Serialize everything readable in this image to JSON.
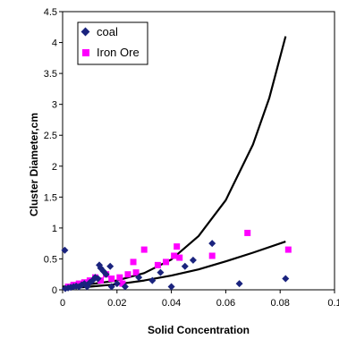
{
  "chart_data": {
    "type": "scatter",
    "title": "",
    "xlabel": "Solid Concentration",
    "ylabel": "Cluster Diameter,cm",
    "xlim": [
      0,
      0.1
    ],
    "ylim": [
      0,
      4.5
    ],
    "x_ticks": [
      {
        "value": 0,
        "label": "0"
      },
      {
        "value": 0.02,
        "label": "0.02"
      },
      {
        "value": 0.04,
        "label": "0.04"
      },
      {
        "value": 0.06,
        "label": "0.06"
      },
      {
        "value": 0.08,
        "label": "0.08"
      },
      {
        "value": 0.1,
        "label": "0.1"
      }
    ],
    "y_ticks": [
      {
        "value": 0,
        "label": "0"
      },
      {
        "value": 0.5,
        "label": "0.5"
      },
      {
        "value": 1,
        "label": "1"
      },
      {
        "value": 1.5,
        "label": "1.5"
      },
      {
        "value": 2,
        "label": "2"
      },
      {
        "value": 2.5,
        "label": "2.5"
      },
      {
        "value": 3,
        "label": "3"
      },
      {
        "value": 3.5,
        "label": "3.5"
      },
      {
        "value": 4,
        "label": "4"
      },
      {
        "value": 4.5,
        "label": "4.5"
      }
    ],
    "grid": false,
    "legend_position": "top-left",
    "series": [
      {
        "name": "coal",
        "marker": "diamond",
        "color": "#1a237e",
        "points": [
          [
            0.0008,
            0.64
          ],
          [
            0.001,
            0.02
          ],
          [
            0.002,
            0.03
          ],
          [
            0.003,
            0.04
          ],
          [
            0.004,
            0.05
          ],
          [
            0.005,
            0.06
          ],
          [
            0.006,
            0.05
          ],
          [
            0.007,
            0.08
          ],
          [
            0.008,
            0.1
          ],
          [
            0.009,
            0.05
          ],
          [
            0.01,
            0.12
          ],
          [
            0.011,
            0.15
          ],
          [
            0.012,
            0.2
          ],
          [
            0.013,
            0.18
          ],
          [
            0.0135,
            0.4
          ],
          [
            0.014,
            0.35
          ],
          [
            0.015,
            0.3
          ],
          [
            0.016,
            0.25
          ],
          [
            0.0175,
            0.38
          ],
          [
            0.018,
            0.05
          ],
          [
            0.02,
            0.1
          ],
          [
            0.023,
            0.05
          ],
          [
            0.028,
            0.2
          ],
          [
            0.033,
            0.15
          ],
          [
            0.036,
            0.28
          ],
          [
            0.04,
            0.05
          ],
          [
            0.045,
            0.38
          ],
          [
            0.048,
            0.48
          ],
          [
            0.055,
            0.75
          ],
          [
            0.065,
            0.1
          ],
          [
            0.082,
            0.18
          ]
        ]
      },
      {
        "name": "Iron Ore",
        "marker": "square",
        "color": "#ff00ff",
        "points": [
          [
            0.002,
            0.05
          ],
          [
            0.004,
            0.08
          ],
          [
            0.006,
            0.1
          ],
          [
            0.008,
            0.12
          ],
          [
            0.01,
            0.15
          ],
          [
            0.012,
            0.2
          ],
          [
            0.014,
            0.15
          ],
          [
            0.016,
            0.25
          ],
          [
            0.018,
            0.18
          ],
          [
            0.021,
            0.2
          ],
          [
            0.024,
            0.25
          ],
          [
            0.026,
            0.45
          ],
          [
            0.03,
            0.65
          ],
          [
            0.035,
            0.4
          ],
          [
            0.038,
            0.45
          ],
          [
            0.041,
            0.55
          ],
          [
            0.042,
            0.7
          ],
          [
            0.055,
            0.55
          ],
          [
            0.068,
            0.92
          ],
          [
            0.083,
            0.65
          ],
          [
            0.027,
            0.28
          ],
          [
            0.022,
            0.1
          ],
          [
            0.043,
            0.52
          ]
        ]
      }
    ],
    "trend_curves": [
      {
        "points": [
          [
            0,
            0.05
          ],
          [
            0.01,
            0.09
          ],
          [
            0.02,
            0.15
          ],
          [
            0.03,
            0.27
          ],
          [
            0.04,
            0.49
          ],
          [
            0.05,
            0.87
          ],
          [
            0.06,
            1.45
          ],
          [
            0.07,
            2.35
          ],
          [
            0.076,
            3.1
          ],
          [
            0.082,
            4.1
          ]
        ]
      },
      {
        "points": [
          [
            0,
            0.02
          ],
          [
            0.01,
            0.05
          ],
          [
            0.02,
            0.09
          ],
          [
            0.03,
            0.15
          ],
          [
            0.04,
            0.23
          ],
          [
            0.05,
            0.33
          ],
          [
            0.06,
            0.46
          ],
          [
            0.07,
            0.6
          ],
          [
            0.082,
            0.78
          ]
        ]
      }
    ]
  }
}
